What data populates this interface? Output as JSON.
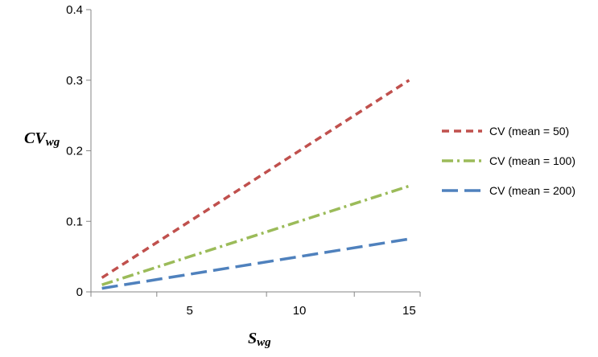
{
  "chart_data": {
    "type": "line",
    "x_axis": {
      "title_main": "S",
      "title_sub": "wg",
      "ticks": [
        5,
        10,
        15
      ],
      "range": [
        0.5,
        15.5
      ]
    },
    "y_axis": {
      "title_main": "CV",
      "title_sub": "wg",
      "ticks": [
        "0",
        "0.1",
        "0.2",
        "0.3",
        "0.4"
      ],
      "range": [
        0,
        0.4
      ]
    },
    "grid": false,
    "legend_position": "right",
    "series": [
      {
        "name": "CV (mean = 50)",
        "color": "#C0504D",
        "dash": "short-dash",
        "x": [
          1,
          15
        ],
        "y": [
          0.02,
          0.3
        ]
      },
      {
        "name": "CV (mean = 100)",
        "color": "#9BBB59",
        "dash": "dash-dot",
        "x": [
          1,
          15
        ],
        "y": [
          0.01,
          0.15
        ]
      },
      {
        "name": "CV (mean = 200)",
        "color": "#4F81BD",
        "dash": "long-dash",
        "x": [
          1,
          15
        ],
        "y": [
          0.005,
          0.075
        ]
      }
    ]
  }
}
